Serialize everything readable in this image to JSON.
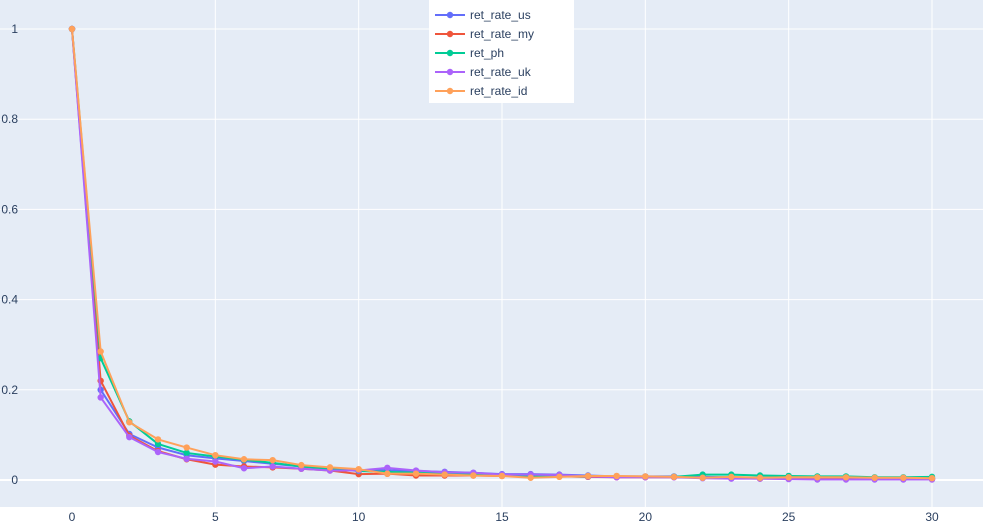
{
  "chart_data": {
    "type": "line",
    "title": "",
    "xlabel": "",
    "ylabel": "",
    "xlim": [
      -1.5,
      31.5
    ],
    "ylim": [
      -0.02,
      1.05
    ],
    "x_ticks": [
      0,
      5,
      10,
      15,
      20,
      25,
      30
    ],
    "x_tick_labels": [
      "0",
      "5",
      "10",
      "15",
      "20",
      "25",
      "30"
    ],
    "y_ticks": [
      0,
      0.2,
      0.4,
      0.6,
      0.8,
      1
    ],
    "y_tick_labels": [
      "0",
      "0.2",
      "0.4",
      "0.6",
      "0.8",
      "1"
    ],
    "grid": true,
    "background": "#e5ecf6",
    "legend_position": "top-center",
    "x": [
      0,
      1,
      2,
      3,
      4,
      5,
      6,
      7,
      8,
      9,
      10,
      11,
      12,
      13,
      14,
      15,
      16,
      17,
      18,
      19,
      20,
      21,
      22,
      23,
      24,
      25,
      26,
      27,
      28,
      29,
      30
    ],
    "series": [
      {
        "name": "ret_rate_us",
        "color": "#636efa",
        "values": [
          1,
          0.2,
          0.102,
          0.072,
          0.055,
          0.048,
          0.042,
          0.036,
          0.03,
          0.025,
          0.022,
          0.022,
          0.02,
          0.018,
          0.016,
          0.013,
          0.013,
          0.012,
          0.01,
          0.008,
          0.008,
          0.008,
          0.007,
          0.006,
          0.005,
          0.005,
          0.005,
          0.004,
          0.004,
          0.004,
          0.003
        ]
      },
      {
        "name": "ret_rate_my",
        "color": "#ef553b",
        "values": [
          1,
          0.22,
          0.098,
          0.064,
          0.046,
          0.034,
          0.03,
          0.028,
          0.025,
          0.021,
          0.013,
          0.014,
          0.01,
          0.01,
          0.01,
          0.009,
          0.008,
          0.008,
          0.007,
          0.006,
          0.006,
          0.006,
          0.005,
          0.004,
          0.003,
          0.003,
          0.003,
          0.003,
          0.003,
          0.002,
          0.002
        ]
      },
      {
        "name": "ret_ph",
        "color": "#00cc96",
        "values": [
          1,
          0.27,
          0.13,
          0.08,
          0.06,
          0.052,
          0.045,
          0.038,
          0.03,
          0.025,
          0.02,
          0.018,
          0.016,
          0.014,
          0.012,
          0.011,
          0.01,
          0.009,
          0.008,
          0.008,
          0.007,
          0.007,
          0.012,
          0.012,
          0.01,
          0.009,
          0.008,
          0.008,
          0.006,
          0.006,
          0.007
        ]
      },
      {
        "name": "ret_rate_uk",
        "color": "#ab63fa",
        "values": [
          1,
          0.183,
          0.095,
          0.062,
          0.047,
          0.041,
          0.026,
          0.03,
          0.025,
          0.021,
          0.021,
          0.027,
          0.021,
          0.017,
          0.016,
          0.012,
          0.012,
          0.011,
          0.008,
          0.006,
          0.006,
          0.006,
          0.004,
          0.003,
          0.003,
          0.002,
          0.001,
          0.001,
          0.001,
          0.001,
          0.001
        ]
      },
      {
        "name": "ret_rate_id",
        "color": "#ffa15a",
        "values": [
          1,
          0.285,
          0.128,
          0.09,
          0.072,
          0.055,
          0.046,
          0.044,
          0.033,
          0.028,
          0.024,
          0.014,
          0.014,
          0.012,
          0.01,
          0.009,
          0.005,
          0.007,
          0.009,
          0.009,
          0.008,
          0.007,
          0.005,
          0.007,
          0.005,
          0.006,
          0.006,
          0.006,
          0.005,
          0.005,
          0.004
        ]
      }
    ]
  }
}
